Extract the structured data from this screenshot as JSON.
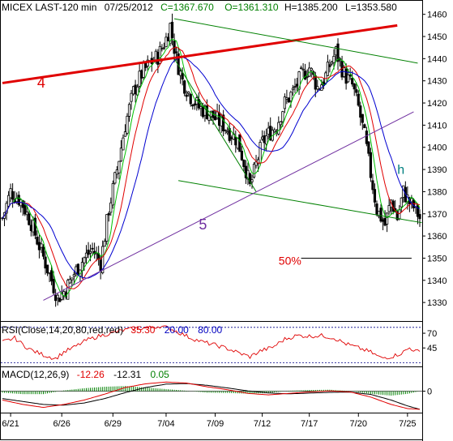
{
  "chart_data": {
    "type": "line",
    "header": {
      "symbol": "MICEX LAST-120 min",
      "date": "07/25/2012",
      "close": "C=1367.670",
      "open": "O=1361.310",
      "high": "H=1385.200",
      "low": "L=1353.580"
    },
    "price_axis": {
      "ylim": [
        1322,
        1465
      ],
      "ticks": [
        "1460",
        "1450",
        "1440",
        "1430",
        "1420",
        "1410",
        "1400",
        "1390",
        "1380",
        "1370",
        "1360",
        "1350",
        "1340",
        "1330"
      ]
    },
    "x_ticks": [
      "6/21",
      "6/26",
      "6/29",
      "7/04",
      "7/09",
      "7/12",
      "7/17",
      "7/20",
      "7/25"
    ],
    "x_tick_index": [
      4,
      29,
      54,
      80,
      104,
      127,
      150,
      174,
      198
    ],
    "n_bars": 205,
    "colors": {
      "candle": "#000000",
      "ma_fast": "#00c000",
      "ma_mid": "#e00000",
      "ma_slow": "#0000d0",
      "trend_red": "#e00000",
      "trend_green": "#008000",
      "trend_purple": "#7030a0",
      "rsi": "#e00000",
      "macd": "#e00000",
      "macd_signal": "#000000",
      "hist": "#008000",
      "level": "#000088",
      "teal": "#008080"
    },
    "price_keypoints": [
      [
        0,
        1368
      ],
      [
        4,
        1380
      ],
      [
        9,
        1376
      ],
      [
        14,
        1366
      ],
      [
        19,
        1353
      ],
      [
        24,
        1340
      ],
      [
        27,
        1332
      ],
      [
        31,
        1336
      ],
      [
        35,
        1343
      ],
      [
        40,
        1350
      ],
      [
        44,
        1354
      ],
      [
        48,
        1348
      ],
      [
        52,
        1372
      ],
      [
        56,
        1390
      ],
      [
        60,
        1410
      ],
      [
        64,
        1425
      ],
      [
        68,
        1433
      ],
      [
        72,
        1438
      ],
      [
        76,
        1441
      ],
      [
        80,
        1449
      ],
      [
        82,
        1455
      ],
      [
        85,
        1440
      ],
      [
        88,
        1430
      ],
      [
        92,
        1423
      ],
      [
        96,
        1418
      ],
      [
        100,
        1416
      ],
      [
        104,
        1413
      ],
      [
        108,
        1410
      ],
      [
        111,
        1407
      ],
      [
        115,
        1403
      ],
      [
        119,
        1390
      ],
      [
        121,
        1382
      ],
      [
        124,
        1392
      ],
      [
        127,
        1402
      ],
      [
        130,
        1406
      ],
      [
        134,
        1410
      ],
      [
        138,
        1420
      ],
      [
        142,
        1425
      ],
      [
        146,
        1432
      ],
      [
        150,
        1436
      ],
      [
        154,
        1427
      ],
      [
        157,
        1430
      ],
      [
        160,
        1437
      ],
      [
        163,
        1443
      ],
      [
        167,
        1433
      ],
      [
        171,
        1428
      ],
      [
        174,
        1418
      ],
      [
        177,
        1405
      ],
      [
        180,
        1388
      ],
      [
        183,
        1372
      ],
      [
        187,
        1365
      ],
      [
        190,
        1376
      ],
      [
        193,
        1368
      ],
      [
        196,
        1380
      ],
      [
        199,
        1375
      ],
      [
        202,
        1372
      ],
      [
        204,
        1368
      ]
    ],
    "lines": [
      {
        "name": "red_channel",
        "color": "trend_red",
        "width": 3,
        "from": [
          0,
          1429
        ],
        "to": [
          193,
          1455
        ]
      },
      {
        "name": "green_top",
        "color": "trend_green",
        "width": 1,
        "from": [
          84,
          1458
        ],
        "to": [
          203,
          1438
        ]
      },
      {
        "name": "green_mid",
        "color": "trend_green",
        "width": 1,
        "from": [
          84,
          1440
        ],
        "to": [
          124,
          1380
        ]
      },
      {
        "name": "green_bottom",
        "color": "trend_green",
        "width": 1,
        "from": [
          86,
          1385
        ],
        "to": [
          205,
          1366
        ]
      },
      {
        "name": "purple_trend",
        "color": "trend_purple",
        "width": 1,
        "from": [
          20,
          1331
        ],
        "to": [
          201,
          1416
        ]
      },
      {
        "name": "fifty_percent",
        "color": "macd_signal",
        "width": 1,
        "from": [
          146,
          1350
        ],
        "to": [
          200,
          1350
        ]
      }
    ],
    "annotations": [
      {
        "name": "label-4",
        "text": "4",
        "x": 17,
        "y": 1427,
        "color": "trend_red",
        "size": 18
      },
      {
        "name": "label-5",
        "text": "5",
        "x": 96,
        "y": 1363,
        "color": "trend_purple",
        "size": 18
      },
      {
        "name": "label-50",
        "text": "50%",
        "x": 135,
        "y": 1347,
        "color": "trend_red",
        "size": 14
      },
      {
        "name": "label-h",
        "text": "h",
        "x": 193,
        "y": 1388,
        "color": "teal",
        "size": 16
      }
    ],
    "rsi": {
      "label": "RSI(Close,14,20,80,red,red)",
      "value": "35.30",
      "low": "20.00",
      "high": "80.00",
      "ylim": [
        15,
        88
      ],
      "ticks": [
        "70",
        "45"
      ],
      "keypoints": [
        [
          0,
          55
        ],
        [
          6,
          62
        ],
        [
          11,
          48
        ],
        [
          15,
          40
        ],
        [
          21,
          32
        ],
        [
          26,
          27
        ],
        [
          30,
          38
        ],
        [
          35,
          46
        ],
        [
          41,
          58
        ],
        [
          47,
          65
        ],
        [
          53,
          70
        ],
        [
          59,
          75
        ],
        [
          65,
          78
        ],
        [
          71,
          79
        ],
        [
          77,
          82
        ],
        [
          82,
          78
        ],
        [
          87,
          70
        ],
        [
          92,
          62
        ],
        [
          98,
          55
        ],
        [
          104,
          50
        ],
        [
          110,
          44
        ],
        [
          116,
          36
        ],
        [
          121,
          30
        ],
        [
          126,
          40
        ],
        [
          132,
          46
        ],
        [
          138,
          60
        ],
        [
          144,
          66
        ],
        [
          150,
          65
        ],
        [
          156,
          66
        ],
        [
          162,
          62
        ],
        [
          168,
          52
        ],
        [
          174,
          45
        ],
        [
          180,
          38
        ],
        [
          185,
          28
        ],
        [
          190,
          30
        ],
        [
          195,
          36
        ],
        [
          199,
          45
        ],
        [
          202,
          40
        ],
        [
          204,
          38
        ]
      ]
    },
    "macd": {
      "label": "MACD(12,26,9)",
      "macd_value": "-12.26",
      "signal_value": "-12.31",
      "hist_value": "0.05",
      "ylim": [
        -14,
        8
      ],
      "ticks": [
        "0"
      ],
      "macd_keypoints": [
        [
          0,
          -6
        ],
        [
          10,
          -9
        ],
        [
          20,
          -11
        ],
        [
          30,
          -9
        ],
        [
          40,
          -6
        ],
        [
          50,
          -2
        ],
        [
          60,
          2.5
        ],
        [
          70,
          5
        ],
        [
          80,
          6.2
        ],
        [
          90,
          5.5
        ],
        [
          100,
          3
        ],
        [
          110,
          1
        ],
        [
          120,
          -1.5
        ],
        [
          130,
          -2.5
        ],
        [
          140,
          -1.5
        ],
        [
          150,
          -0.5
        ],
        [
          160,
          0.2
        ],
        [
          170,
          -0.5
        ],
        [
          180,
          -4
        ],
        [
          190,
          -9
        ],
        [
          198,
          -11.8
        ],
        [
          204,
          -12.3
        ]
      ],
      "signal_keypoints": [
        [
          0,
          -5
        ],
        [
          10,
          -7
        ],
        [
          20,
          -9
        ],
        [
          30,
          -9.5
        ],
        [
          40,
          -8
        ],
        [
          50,
          -5
        ],
        [
          60,
          -1
        ],
        [
          70,
          2.5
        ],
        [
          80,
          4.8
        ],
        [
          90,
          5.2
        ],
        [
          100,
          4
        ],
        [
          110,
          2.2
        ],
        [
          120,
          0.2
        ],
        [
          130,
          -1.2
        ],
        [
          140,
          -1.8
        ],
        [
          150,
          -1.3
        ],
        [
          160,
          -0.8
        ],
        [
          170,
          -0.6
        ],
        [
          180,
          -2.2
        ],
        [
          190,
          -6
        ],
        [
          198,
          -10
        ],
        [
          204,
          -12.3
        ]
      ]
    }
  }
}
